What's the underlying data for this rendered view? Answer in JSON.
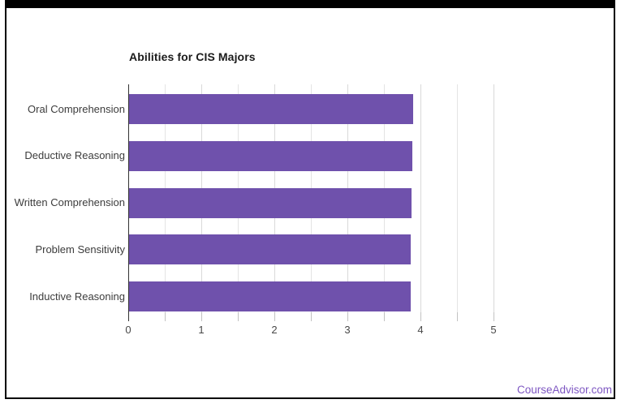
{
  "page": {
    "background_color": "#ffffff",
    "frame_border_color": "#000000"
  },
  "chart_data": {
    "type": "bar",
    "orientation": "horizontal",
    "title": "Abilities for CIS Majors",
    "categories": [
      "Oral Comprehension",
      "Deductive Reasoning",
      "Written Comprehension",
      "Problem Sensitivity",
      "Inductive Reasoning"
    ],
    "values": [
      3.89,
      3.88,
      3.87,
      3.86,
      3.85
    ],
    "xlim": [
      0,
      5
    ],
    "x_tick_labels": [
      "0",
      "1",
      "2",
      "3",
      "4",
      "5"
    ],
    "minor_gridline_step": 0.5,
    "grid": true,
    "legend": "none",
    "bar_color": "#6f51ac",
    "gridline_color": "#e4e4e4",
    "major_gridline_color": "#d9d9d9",
    "axis_line_color": "#333333",
    "tick_color": "#c2c2c2",
    "title_color": "#1b1b1b",
    "category_label_color": "#3c3c3c",
    "value_label_color": "#484848"
  },
  "footer": {
    "brand": "CourseAdvisor.com",
    "brand_color": "#7e57c2"
  }
}
